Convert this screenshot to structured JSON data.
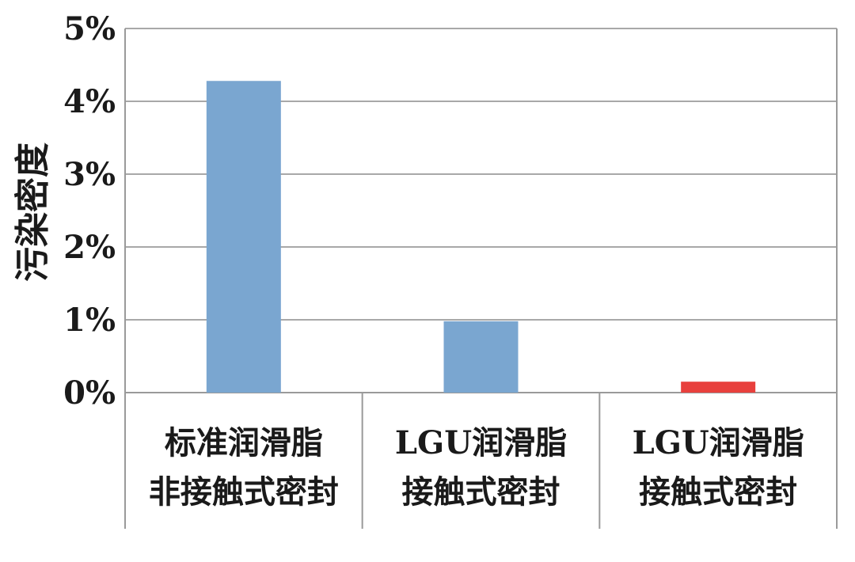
{
  "chart_data": {
    "type": "bar",
    "title": "",
    "xlabel": "",
    "ylabel": "污染密度",
    "ylim": [
      0,
      5
    ],
    "yticks": [
      "0%",
      "1%",
      "2%",
      "3%",
      "4%",
      "5%"
    ],
    "grid": true,
    "legend": "none",
    "categories": [
      [
        "标准润滑脂",
        "非接触式密封"
      ],
      [
        "LGU润滑脂",
        "接触式密封"
      ],
      [
        "LGU润滑脂",
        "接触式密封"
      ]
    ],
    "values": [
      4.28,
      0.98,
      0.15
    ],
    "bar_colors": [
      "#7aa6d0",
      "#7aa6d0",
      "#e8403d"
    ],
    "unit": "%"
  }
}
